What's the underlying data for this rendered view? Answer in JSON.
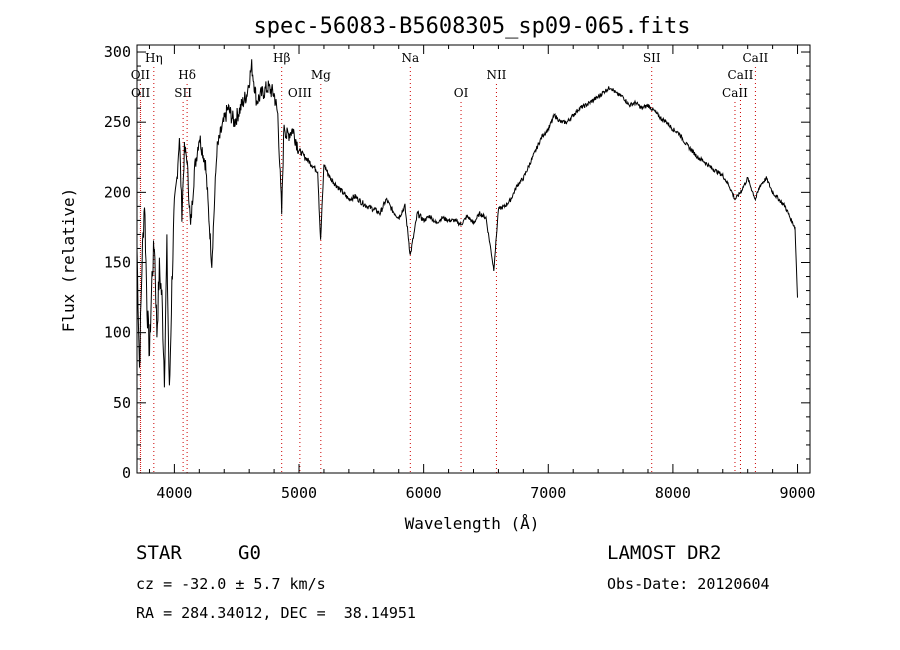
{
  "chart_data": {
    "type": "line",
    "title": "spec-56083-B5608305_sp09-065.fits",
    "xlabel": "Wavelength (Å)",
    "ylabel": "Flux (relative)",
    "xlim": [
      3700,
      9100
    ],
    "ylim": [
      0,
      305
    ],
    "xticks": [
      4000,
      5000,
      6000,
      7000,
      8000,
      9000
    ],
    "yticks": [
      0,
      50,
      100,
      150,
      200,
      250,
      300
    ],
    "grid": false,
    "line_color": "#000000",
    "marker_color": "#cc0000",
    "series": [
      {
        "x": [
          3700,
          3720,
          3740,
          3760,
          3780,
          3800,
          3820,
          3840,
          3860,
          3880,
          3900,
          3920,
          3940,
          3960,
          3980,
          4000,
          4020,
          4040,
          4060,
          4080,
          4100,
          4130,
          4160,
          4200,
          4250,
          4300,
          4340,
          4380,
          4430,
          4480,
          4530,
          4580,
          4620,
          4660,
          4700,
          4750,
          4800,
          4830,
          4861,
          4880,
          4900,
          4950,
          5000,
          5050,
          5100,
          5150,
          5173,
          5200,
          5250,
          5300,
          5350,
          5400,
          5450,
          5500,
          5550,
          5600,
          5650,
          5700,
          5750,
          5800,
          5850,
          5893,
          5950,
          6000,
          6050,
          6100,
          6150,
          6200,
          6250,
          6300,
          6350,
          6400,
          6450,
          6500,
          6563,
          6600,
          6650,
          6700,
          6750,
          6800,
          6850,
          6900,
          6950,
          7000,
          7050,
          7100,
          7150,
          7200,
          7250,
          7300,
          7350,
          7400,
          7450,
          7500,
          7550,
          7600,
          7650,
          7700,
          7750,
          7800,
          7850,
          7900,
          7950,
          8000,
          8050,
          8100,
          8150,
          8200,
          8250,
          8300,
          8350,
          8400,
          8450,
          8498,
          8542,
          8600,
          8662,
          8700,
          8750,
          8800,
          8850,
          8900,
          8950,
          8980,
          9000
        ],
        "y": [
          160,
          75,
          150,
          195,
          120,
          85,
          140,
          165,
          100,
          145,
          125,
          70,
          160,
          55,
          135,
          190,
          210,
          240,
          185,
          230,
          225,
          175,
          215,
          240,
          220,
          150,
          230,
          245,
          260,
          250,
          260,
          270,
          290,
          265,
          270,
          275,
          270,
          255,
          185,
          250,
          240,
          245,
          230,
          225,
          220,
          215,
          165,
          220,
          210,
          205,
          200,
          195,
          197,
          193,
          190,
          188,
          185,
          195,
          187,
          182,
          190,
          155,
          185,
          180,
          183,
          178,
          182,
          180,
          180,
          177,
          183,
          178,
          185,
          182,
          145,
          188,
          190,
          195,
          205,
          210,
          220,
          230,
          240,
          245,
          255,
          250,
          250,
          255,
          260,
          262,
          265,
          268,
          272,
          275,
          270,
          268,
          262,
          264,
          260,
          262,
          258,
          253,
          250,
          245,
          242,
          235,
          230,
          225,
          222,
          218,
          215,
          212,
          205,
          195,
          200,
          210,
          195,
          205,
          210,
          200,
          195,
          190,
          180,
          175,
          125
        ]
      }
    ],
    "line_markers": [
      {
        "label": "Hη",
        "x": 3835,
        "row": 1
      },
      {
        "label": "OII",
        "x": 3727,
        "row": 2
      },
      {
        "label": "OII",
        "x": 3729,
        "row": 3
      },
      {
        "label": "Hδ",
        "x": 4102,
        "row": 2
      },
      {
        "label": "SII",
        "x": 4070,
        "row": 3
      },
      {
        "label": "Hβ",
        "x": 4861,
        "row": 1
      },
      {
        "label": "Mg",
        "x": 5175,
        "row": 2
      },
      {
        "label": "OIII",
        "x": 5007,
        "row": 3
      },
      {
        "label": "Na",
        "x": 5893,
        "row": 1
      },
      {
        "label": "NII",
        "x": 6584,
        "row": 2
      },
      {
        "label": "OI",
        "x": 6300,
        "row": 3
      },
      {
        "label": "SII",
        "x": 7830,
        "row": 1
      },
      {
        "label": "CaII",
        "x": 8662,
        "row": 1
      },
      {
        "label": "CaII",
        "x": 8542,
        "row": 2
      },
      {
        "label": "CaII",
        "x": 8498,
        "row": 3
      }
    ]
  },
  "info": {
    "class": "STAR",
    "subclass": "G0",
    "survey": "LAMOST DR2",
    "cz": "cz = -32.0 ± 5.7 km/s",
    "obs_date": "Obs-Date: 20120604",
    "coords": "RA = 284.34012, DEC =  38.14951"
  }
}
